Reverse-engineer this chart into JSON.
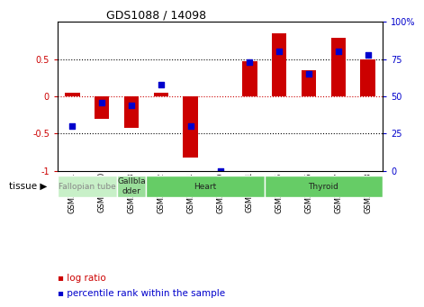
{
  "title": "GDS1088 / 14098",
  "samples": [
    "GSM39991",
    "GSM40000",
    "GSM39993",
    "GSM39992",
    "GSM39994",
    "GSM39999",
    "GSM40001",
    "GSM39995",
    "GSM39996",
    "GSM39997",
    "GSM39998"
  ],
  "log_ratio": [
    0.05,
    -0.3,
    -0.42,
    0.05,
    -0.82,
    0.0,
    0.47,
    0.85,
    0.35,
    0.78,
    0.5
  ],
  "percentile_rank": [
    30,
    46,
    44,
    58,
    30,
    0,
    73,
    80,
    65,
    80,
    78
  ],
  "tissue_data": [
    {
      "label": "Fallopian tube",
      "start": 0,
      "end": 2,
      "color": "#c8f0c8",
      "text_color": "#888888"
    },
    {
      "label": "Gallbla\ndder",
      "start": 2,
      "end": 3,
      "color": "#99dd99",
      "text_color": "#222222"
    },
    {
      "label": "Heart",
      "start": 3,
      "end": 7,
      "color": "#66cc66",
      "text_color": "#222222"
    },
    {
      "label": "Thyroid",
      "start": 7,
      "end": 11,
      "color": "#66cc66",
      "text_color": "#222222"
    }
  ],
  "bar_color": "#cc0000",
  "dot_color": "#0000cc",
  "ylim": [
    -1,
    1
  ],
  "y2lim": [
    0,
    100
  ],
  "y_ticks": [
    -1,
    -0.5,
    0,
    0.5
  ],
  "y2_ticks": [
    0,
    25,
    50,
    75,
    100
  ],
  "background_color": "#ffffff"
}
